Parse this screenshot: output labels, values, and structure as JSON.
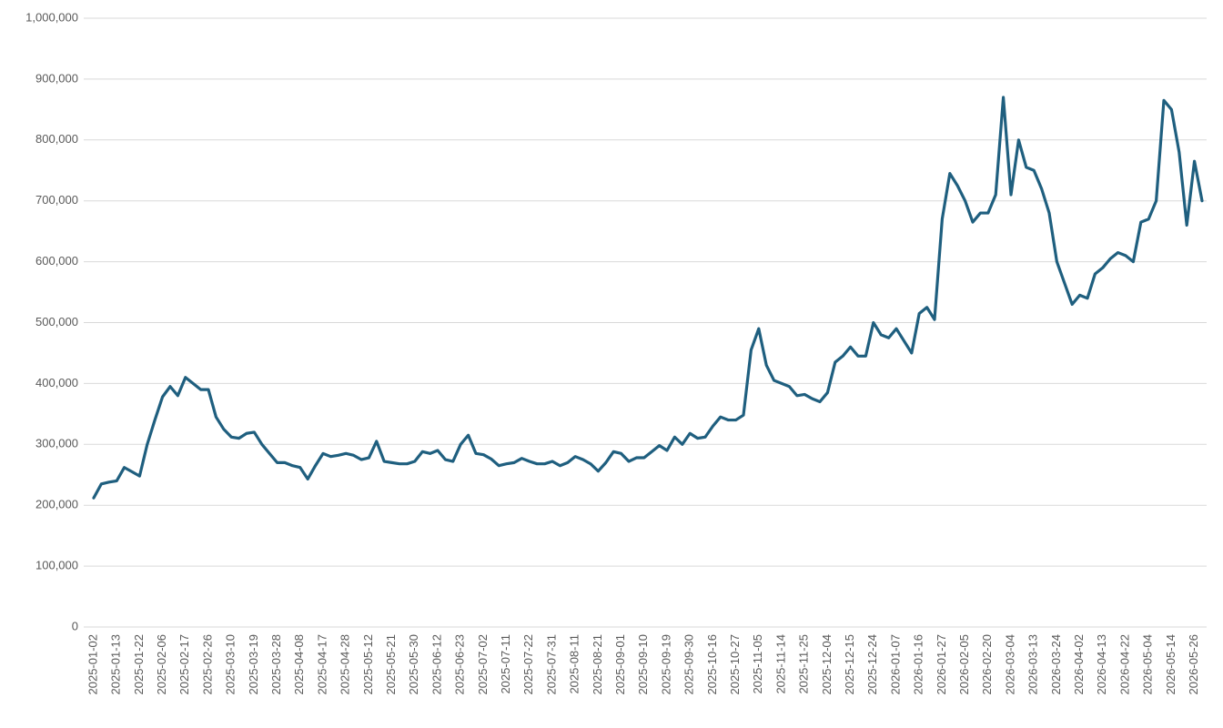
{
  "chart_data": {
    "type": "line",
    "categories": [
      "2025-01-02",
      null,
      null,
      "2025-01-13",
      null,
      null,
      "2025-01-22",
      null,
      null,
      "2025-02-06",
      null,
      null,
      "2025-02-17",
      null,
      null,
      "2025-02-26",
      null,
      null,
      "2025-03-10",
      null,
      null,
      "2025-03-19",
      null,
      null,
      "2025-03-28",
      null,
      null,
      "2025-04-08",
      null,
      null,
      "2025-04-17",
      null,
      null,
      "2025-04-28",
      null,
      null,
      "2025-05-12",
      null,
      null,
      "2025-05-21",
      null,
      null,
      "2025-05-30",
      null,
      null,
      "2025-06-12",
      null,
      null,
      "2025-06-23",
      null,
      null,
      "2025-07-02",
      null,
      null,
      "2025-07-11",
      null,
      null,
      "2025-07-22",
      null,
      null,
      "2025-07-31",
      null,
      null,
      "2025-08-11",
      null,
      null,
      "2025-08-21",
      null,
      null,
      "2025-09-01",
      null,
      null,
      "2025-09-10",
      null,
      null,
      "2025-09-19",
      null,
      null,
      "2025-09-30",
      null,
      null,
      "2025-10-16",
      null,
      null,
      "2025-10-27",
      null,
      null,
      "2025-11-05",
      null,
      null,
      "2025-11-14",
      null,
      null,
      "2025-11-25",
      null,
      null,
      "2025-12-04",
      null,
      null,
      "2025-12-15",
      null,
      null,
      "2025-12-24",
      null,
      null,
      "2026-01-07",
      null,
      null,
      "2026-01-16",
      null,
      null,
      "2026-01-27",
      null,
      null,
      "2026-02-05",
      null,
      null,
      "2026-02-20",
      null,
      null,
      "2026-03-04",
      null,
      null,
      "2026-03-13",
      null,
      null,
      "2026-03-24",
      null,
      null,
      "2026-04-02",
      null,
      null,
      "2026-04-13",
      null,
      null,
      "2026-04-22",
      null,
      null,
      "2026-05-04",
      null,
      null,
      "2026-05-14",
      null,
      null,
      "2026-05-26",
      null
    ],
    "values": [
      212000,
      235000,
      238000,
      240000,
      262000,
      255000,
      248000,
      300000,
      340000,
      378000,
      395000,
      380000,
      410000,
      400000,
      390000,
      390000,
      345000,
      325000,
      312000,
      310000,
      318000,
      320000,
      300000,
      285000,
      270000,
      270000,
      265000,
      262000,
      243000,
      265000,
      285000,
      280000,
      282000,
      285000,
      282000,
      275000,
      278000,
      305000,
      272000,
      270000,
      268000,
      268000,
      272000,
      288000,
      285000,
      290000,
      275000,
      272000,
      300000,
      315000,
      285000,
      283000,
      276000,
      265000,
      268000,
      270000,
      277000,
      272000,
      268000,
      268000,
      272000,
      265000,
      270000,
      280000,
      275000,
      268000,
      256000,
      270000,
      288000,
      285000,
      272000,
      278000,
      278000,
      288000,
      298000,
      290000,
      312000,
      300000,
      318000,
      310000,
      312000,
      330000,
      345000,
      340000,
      340000,
      348000,
      455000,
      490000,
      430000,
      405000,
      400000,
      395000,
      380000,
      382000,
      375000,
      370000,
      385000,
      435000,
      445000,
      460000,
      445000,
      445000,
      500000,
      480000,
      475000,
      490000,
      470000,
      450000,
      515000,
      525000,
      505000,
      670000,
      745000,
      725000,
      700000,
      665000,
      680000,
      680000,
      710000,
      870000,
      710000,
      800000,
      755000,
      750000,
      720000,
      680000,
      600000,
      565000,
      530000,
      545000,
      540000,
      580000,
      590000,
      605000,
      615000,
      610000,
      600000,
      665000,
      670000,
      700000,
      865000,
      850000,
      780000,
      660000,
      765000,
      700000
    ],
    "color": "#1f5f7f",
    "ylim": [
      0,
      1000000
    ],
    "yticks": [
      0,
      {
        "value": 100000,
        "label": "100,000"
      },
      {
        "value": 200000,
        "label": "200,000"
      },
      {
        "value": 300000,
        "label": "300,000"
      },
      {
        "value": 400000,
        "label": "400,000"
      },
      {
        "value": 500000,
        "label": "500,000"
      },
      {
        "value": 600000,
        "label": "600,000"
      },
      {
        "value": 700000,
        "label": "700,000"
      },
      {
        "value": 800000,
        "label": "800,000"
      },
      {
        "value": 900000,
        "label": "900,000"
      },
      {
        "value": 1000000,
        "label": "1,000,000"
      }
    ],
    "grid": true
  }
}
